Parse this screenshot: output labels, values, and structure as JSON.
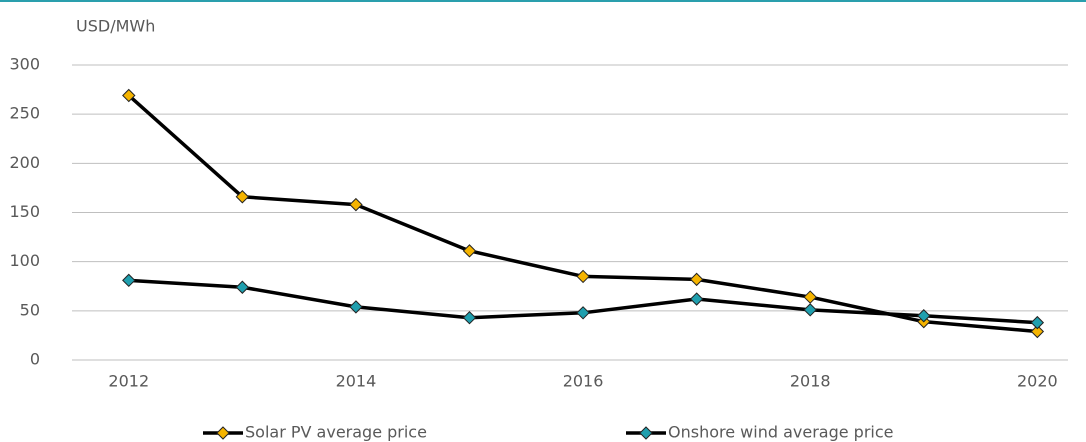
{
  "chart_data": {
    "type": "line",
    "ylabel": "USD/MWh",
    "x": [
      2012,
      2013,
      2014,
      2015,
      2016,
      2017,
      2018,
      2019,
      2020
    ],
    "series": [
      {
        "name": "Solar PV average price",
        "color": "#f5b400",
        "values": [
          269,
          166,
          158,
          111,
          85,
          82,
          64,
          39,
          29
        ]
      },
      {
        "name": "Onshore wind average price",
        "color": "#1f9fae",
        "values": [
          81,
          74,
          54,
          43,
          48,
          62,
          51,
          45,
          38
        ]
      }
    ],
    "xlim": [
      2011.5,
      2020.27
    ],
    "xticks": [
      2012,
      2014,
      2016,
      2018,
      2020
    ],
    "ylim": [
      0,
      300
    ],
    "yticks": [
      0,
      50,
      100,
      150,
      200,
      250,
      300
    ],
    "grid": true,
    "line_color": "#000000",
    "legend": "bottom"
  }
}
